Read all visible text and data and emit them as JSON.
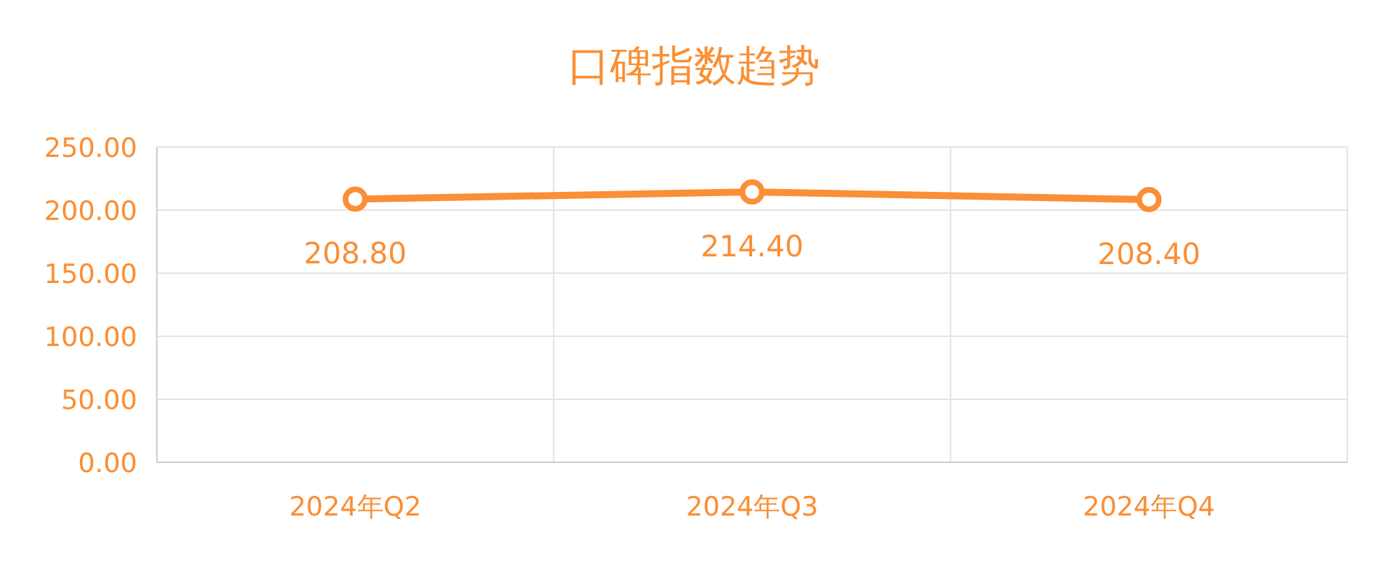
{
  "chart_data": {
    "type": "line",
    "title": "口碑指数趋势",
    "categories": [
      "2024年Q2",
      "2024年Q3",
      "2024年Q4"
    ],
    "values": [
      208.8,
      214.4,
      208.4
    ],
    "value_labels": [
      "208.80",
      "214.40",
      "208.40"
    ],
    "color": "#fa8f35",
    "ylim": [
      0,
      250
    ],
    "yticks": [
      {
        "value": 0,
        "label": "0.00"
      },
      {
        "value": 50,
        "label": "50.00"
      },
      {
        "value": 100,
        "label": "100.00"
      },
      {
        "value": 150,
        "label": "150.00"
      },
      {
        "value": 200,
        "label": "200.00"
      },
      {
        "value": 250,
        "label": "250.00"
      }
    ],
    "grid": true,
    "marker": "circle",
    "line_style": "solid"
  }
}
